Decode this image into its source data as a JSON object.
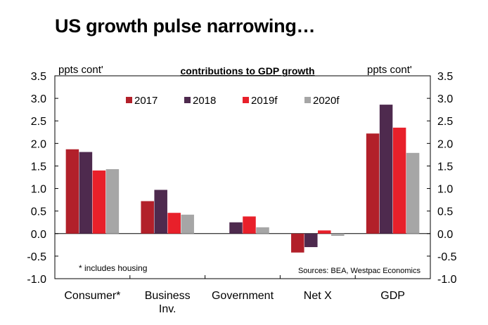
{
  "headline": "US growth pulse narrowing…",
  "chart_data": {
    "type": "bar",
    "title": "contributions to GDP growth",
    "ylabel_left": "ppts cont'",
    "ylabel_right": "ppts cont'",
    "categories": [
      "Consumer*",
      "Business Inv.",
      "Government",
      "Net X",
      "GDP"
    ],
    "category_lines": [
      [
        "Consumer*"
      ],
      [
        "Business",
        "Inv."
      ],
      [
        "Government"
      ],
      [
        "Net X"
      ],
      [
        "GDP"
      ]
    ],
    "series": [
      {
        "name": "2017",
        "color": "#b2202a",
        "values": [
          1.87,
          0.72,
          0.0,
          -0.42,
          2.22
        ]
      },
      {
        "name": "2018",
        "color": "#4e2a4e",
        "values": [
          1.81,
          0.97,
          0.25,
          -0.3,
          2.86
        ]
      },
      {
        "name": "2019f",
        "color": "#e8202a",
        "values": [
          1.4,
          0.46,
          0.38,
          0.07,
          2.35
        ]
      },
      {
        "name": "2020f",
        "color": "#a6a6a6",
        "values": [
          1.43,
          0.42,
          0.14,
          -0.05,
          1.79
        ]
      }
    ],
    "ylim": [
      -1.0,
      3.5
    ],
    "yticks": [
      -1.0,
      -0.5,
      0.0,
      0.5,
      1.0,
      1.5,
      2.0,
      2.5,
      3.0,
      3.5
    ],
    "ytick_labels": [
      "-1.0",
      "-0.5",
      "0.0",
      "0.5",
      "1.0",
      "1.5",
      "2.0",
      "2.5",
      "3.0",
      "3.5"
    ],
    "right_ytick_labels": [
      "-1.0",
      "-0.5",
      "0.0",
      "0.5",
      "1.0",
      "1.5",
      "2.0",
      "2.5",
      "3.0",
      "3.5"
    ],
    "legend_position": "top-center",
    "grid": false,
    "annotations": {
      "footnote": "* includes housing",
      "source": "Sources: BEA, Westpac Economics"
    }
  }
}
